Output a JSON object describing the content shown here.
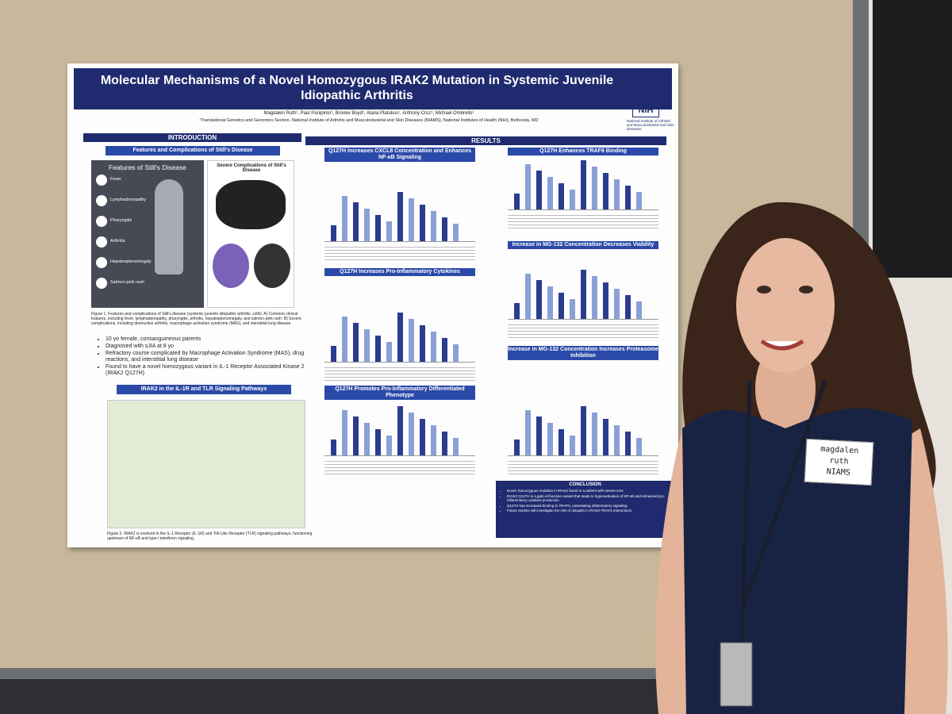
{
  "poster": {
    "title": "Molecular Mechanisms of a Novel Homozygous IRAK2 Mutation in Systemic Juvenile Idiopathic Arthritis",
    "authors": "Magdalen Ruth¹, Paul Panipinto¹, Brooke Boyd¹, Alana Platukus¹, Anthony Cruz¹, Michael Ombrello¹",
    "affiliation": "¹Translational Genetics and Genomics Section, National Institute of Arthritis and Musculoskeletal and Skin Diseases (NIAMS), National Institutes of Health (NIH), Bethesda, MD",
    "logo": {
      "mark": "NIH",
      "text": "National Institute of Arthritis and Musculoskeletal and Skin Diseases"
    },
    "introduction": {
      "header": "INTRODUCTION",
      "panel_title": "Features and Complications of Still's Disease",
      "figure_a_title": "Features of Still's Disease",
      "figure_b_title": "Severe Complications of Still's Disease",
      "features": [
        "Fever",
        "Lymphadenopathy",
        "Pharyngitis",
        "Arthritis",
        "Hepatosplenomegaly",
        "Salmon-pink rash"
      ],
      "figure_1_caption": "Figure 1. Features and complications of Still's disease (systemic juvenile idiopathic arthritis, sJIA). A) Common clinical features, including fever, lymphadenopathy, pharyngitis, arthritis, hepatosplenomegaly, and salmon-pink rash. B) Severe complications, including destructive arthritis, macrophage activation syndrome (MAS), and interstitial lung disease",
      "bullets": [
        "10 yo female, consanguineous parents",
        "Diagnosed with sJIA at 8 yo",
        "Refractory course complicated by Macrophage Activation Syndrome (MAS), drug reactions, and interstitial lung disease",
        "Found to have a novel homozygous variant in IL-1 Receptor Associated Kinase 2 (IRAK2 Q127H)"
      ],
      "pathway_title": "IRAK2 in the IL-1R and TLR Signaling Pathways",
      "figure_2_caption": "Figure 2. IRAK2 is involved in the IL-1 Receptor (IL-1R) and Toll-Like Receptor (TLR) signaling pathways, functioning upstream of NF-κB and type I interferon signaling."
    },
    "results": {
      "header": "RESULTS",
      "panels": [
        "Q127H Increases CXCL8 Concentration and Enhances NF-κB Signaling",
        "Q127H Increases Pro-Inflammatory Cytokines",
        "Q127H Promotes Pro-Inflammatory Differentiated Phenotype",
        "Q127H Enhances TRAF6 Binding",
        "Increase in MG-132 Concentration Decreases Viability",
        "Increase in MG-132 Concentration Increases Proteasome Inhibition"
      ]
    },
    "conclusion": {
      "header": "CONCLUSION",
      "bullets": [
        "Novel, homozygous mutation in IRAK2 found in a patient with severe sJIA",
        "IRAK2 Q127H is a gain-of-function variant that leads to hyperactivation of NF-κB and enhanced pro-inflammatory cytokine production",
        "Q127H has increased binding to TRAF6, potentiating inflammatory signaling",
        "Future studies will investigate the role of ubiquitin in IRAK2-TRAF6 interactions"
      ]
    }
  },
  "name_tag": {
    "lines": [
      "magdalen",
      "ruth",
      "NIAMS"
    ]
  }
}
